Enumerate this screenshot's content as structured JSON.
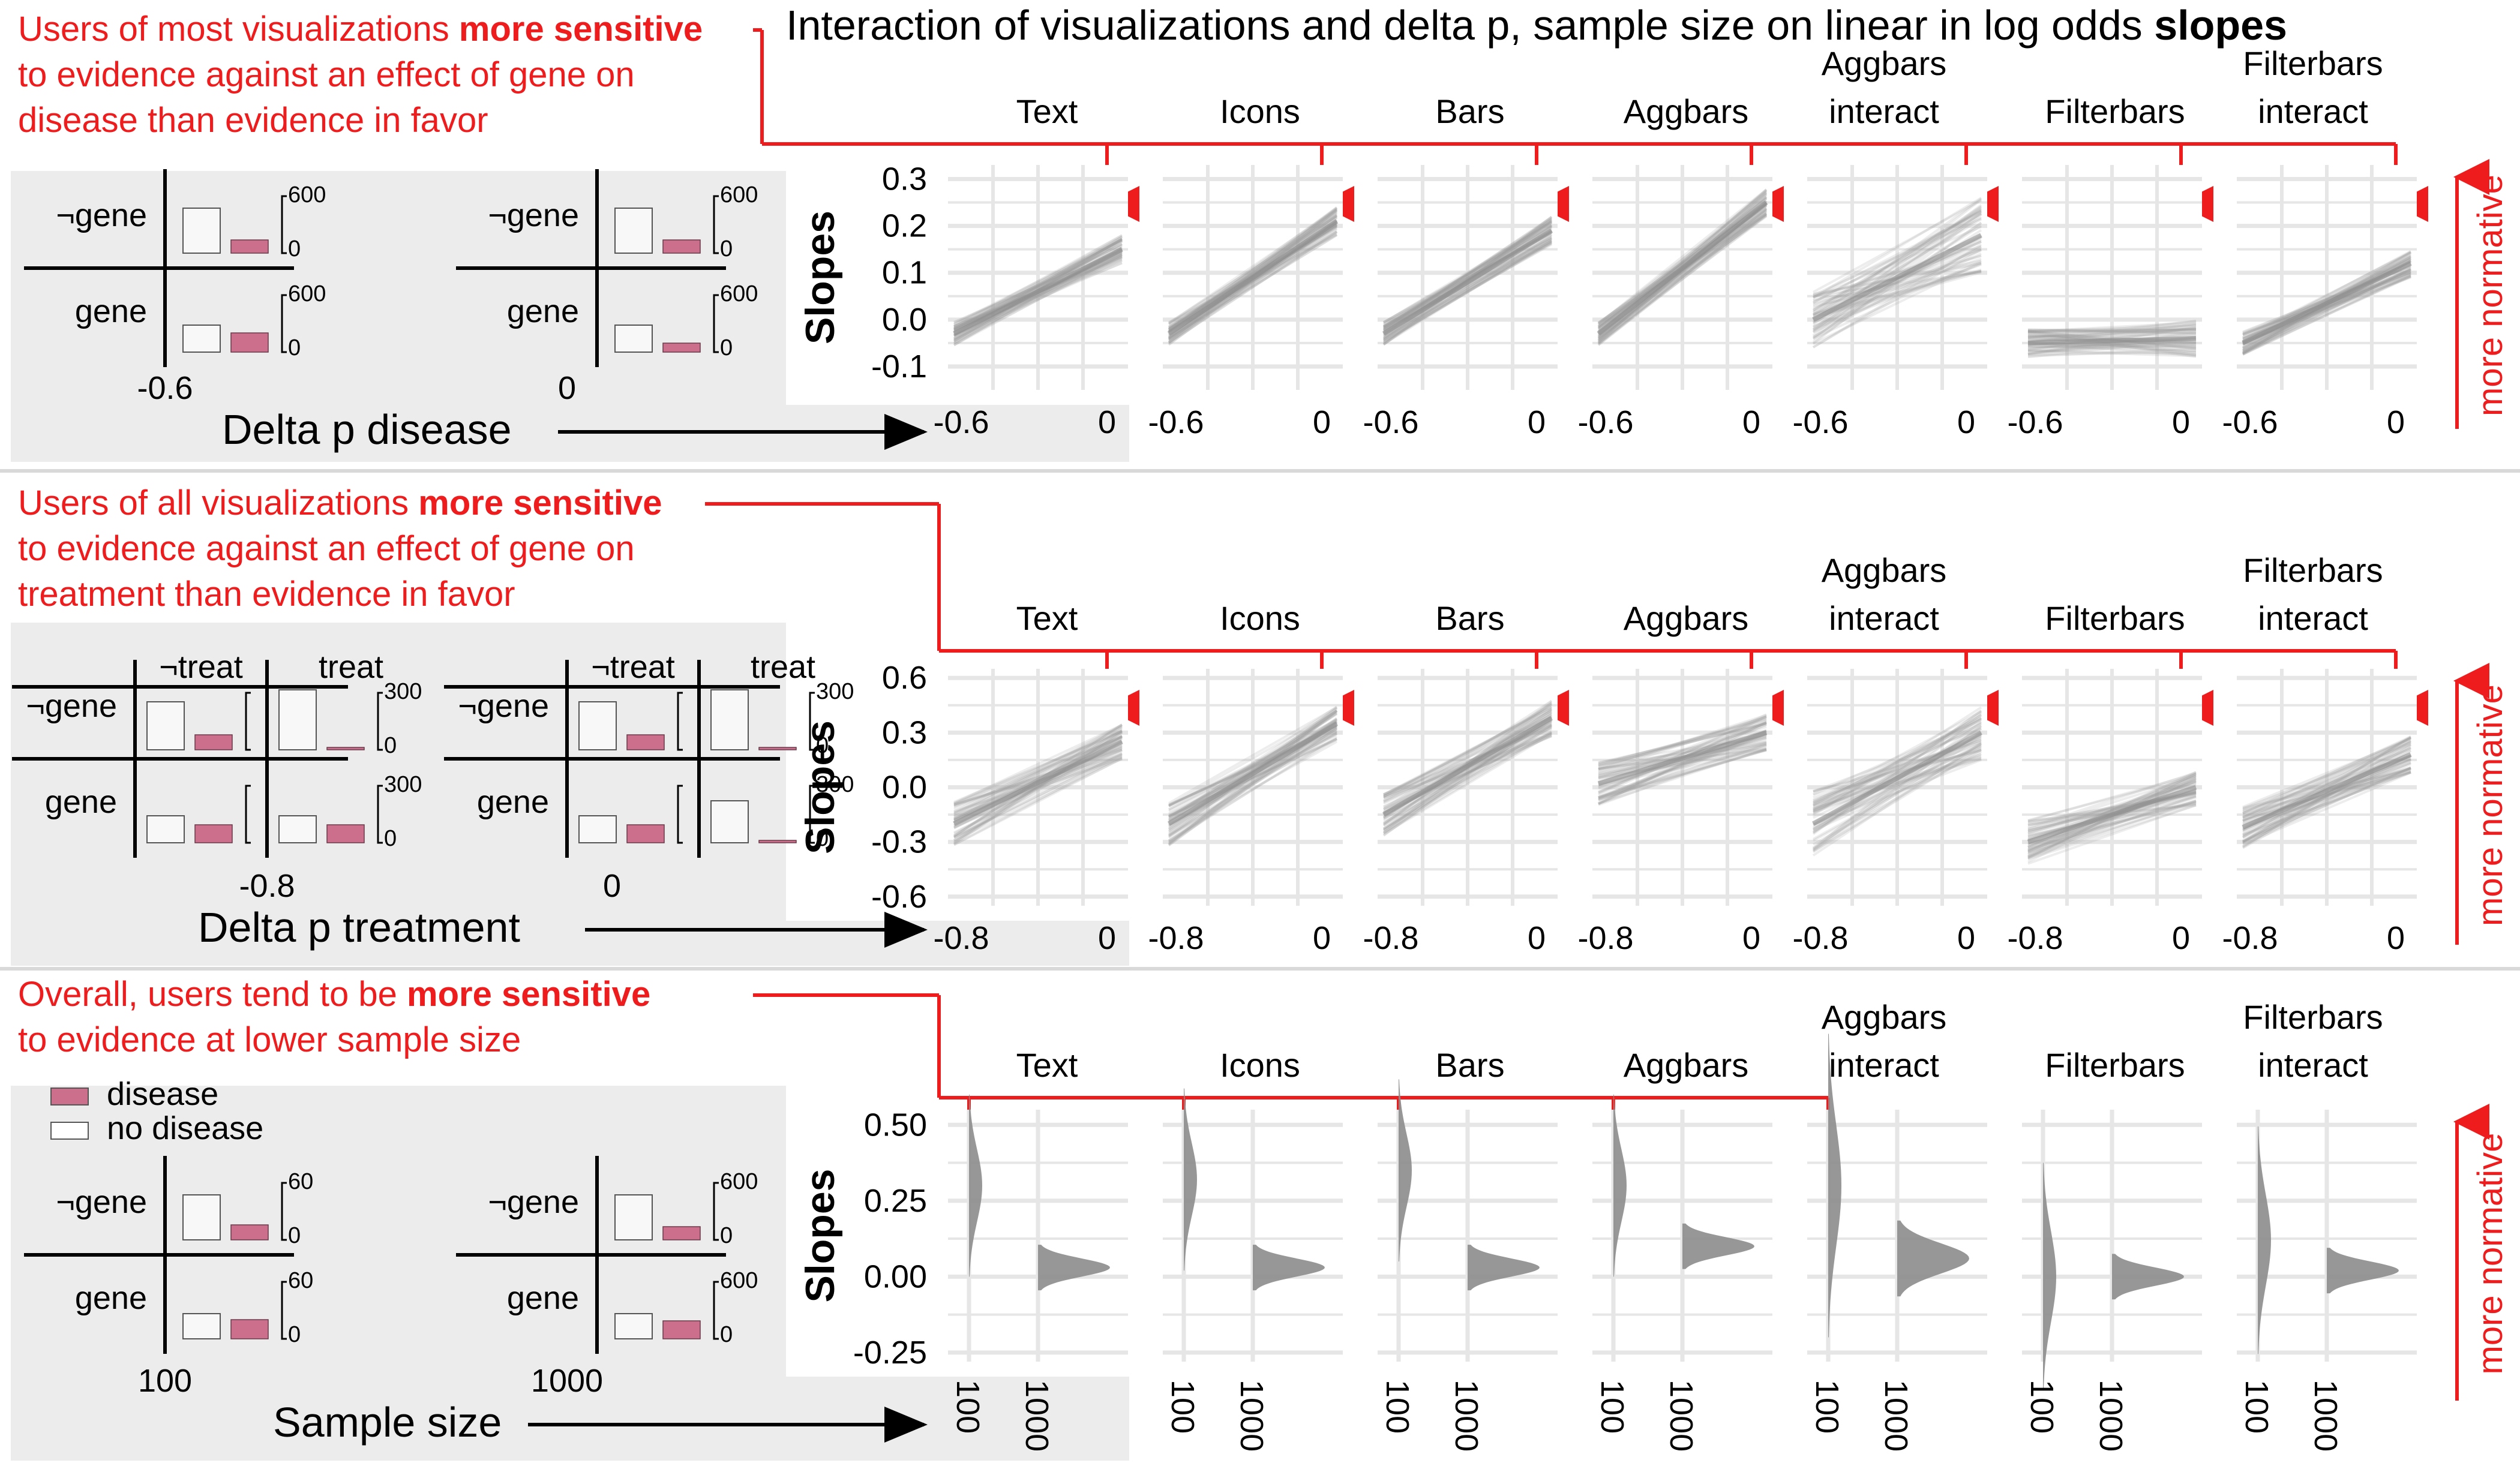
{
  "title": {
    "prefix": "Interaction of visualizations and delta p, sample size on linear in log odds ",
    "bold": "slopes"
  },
  "colors": {
    "red": "#ee1c1c",
    "line": "#999999",
    "grid": "#e6e6e6",
    "panel_bg": "#ececec",
    "bar_pink": "#cc6f8c"
  },
  "visualizations": [
    [
      "Text"
    ],
    [
      "Icons"
    ],
    [
      "Bars"
    ],
    [
      "Aggbars"
    ],
    [
      "Aggbars",
      "interact"
    ],
    [
      "Filterbars"
    ],
    [
      "Filterbars",
      "interact"
    ]
  ],
  "side_label": "more normative",
  "rows": [
    {
      "note_lines": [
        [
          {
            "t": "Users of most visualizations ",
            "b": false
          },
          {
            "t": "more sensitive",
            "b": true
          }
        ],
        [
          {
            "t": "to evidence against an effect of gene on",
            "b": false
          }
        ],
        [
          {
            "t": "disease than evidence in favor",
            "b": false
          }
        ]
      ],
      "matrix": {
        "type": "disease",
        "columns": [
          {
            "label": "-0.6",
            "rows": [
              "¬gene",
              "gene"
            ],
            "scale_top": "600",
            "scale_bottom": "0"
          },
          {
            "label": "0",
            "rows": [
              "¬gene",
              "gene"
            ],
            "scale_top": "600",
            "scale_bottom": "0"
          }
        ]
      },
      "bottom_label": "Delta p disease",
      "ylabel": "Slopes",
      "yticks": [
        "0.3",
        "0.2",
        "0.1",
        "0.0",
        "-0.1"
      ],
      "xticks": [
        "-0.6",
        "0"
      ]
    },
    {
      "note_lines": [
        [
          {
            "t": "Users of all visualizations ",
            "b": false
          },
          {
            "t": "more sensitive",
            "b": true
          }
        ],
        [
          {
            "t": "to evidence against an effect of gene on",
            "b": false
          }
        ],
        [
          {
            "t": "treatment than evidence in favor",
            "b": false
          }
        ]
      ],
      "matrix": {
        "type": "treatment",
        "col_headers": [
          "¬treat",
          "treat"
        ],
        "columns": [
          {
            "label": "-0.8",
            "rows": [
              "¬gene",
              "gene"
            ],
            "scale_top": "300",
            "scale_bottom": "0"
          },
          {
            "label": "0",
            "rows": [
              "¬gene",
              "gene"
            ],
            "scale_top": "300",
            "scale_bottom": "0"
          }
        ]
      },
      "bottom_label": "Delta p treatment",
      "ylabel": "Slopes",
      "yticks": [
        "0.6",
        "0.3",
        "0.0",
        "-0.3",
        "-0.6"
      ],
      "xticks": [
        "-0.8",
        "0"
      ]
    },
    {
      "note_lines": [
        [
          {
            "t": "Overall, users tend to be ",
            "b": false
          },
          {
            "t": "more sensitive",
            "b": true
          }
        ],
        [
          {
            "t": "to evidence at lower sample size",
            "b": false
          }
        ]
      ],
      "legend": [
        {
          "label": "disease",
          "color": "#cc6f8c"
        },
        {
          "label": "no disease",
          "color": "#ffffff"
        }
      ],
      "matrix": {
        "type": "sample",
        "columns": [
          {
            "label": "100",
            "rows": [
              "¬gene",
              "gene"
            ],
            "scale_top": "60",
            "scale_bottom": "0"
          },
          {
            "label": "1000",
            "rows": [
              "¬gene",
              "gene"
            ],
            "scale_top": "600",
            "scale_bottom": "0"
          }
        ]
      },
      "bottom_label": "Sample size",
      "ylabel": "Slopes",
      "yticks": [
        "0.50",
        "0.25",
        "0.00",
        "-0.25"
      ],
      "xticks": [
        "100",
        "1000"
      ]
    }
  ],
  "chart_data": [
    {
      "type": "line",
      "title": "Interaction of visualizations and delta p, sample size on linear in log odds slopes",
      "xlabel": "Delta p disease",
      "ylabel": "Slopes",
      "xlim": [
        -0.6,
        0
      ],
      "ylim": [
        -0.15,
        0.33
      ],
      "series": [
        {
          "name": "Text",
          "x": [
            -0.6,
            0
          ],
          "y": [
            -0.03,
            0.15
          ]
        },
        {
          "name": "Icons",
          "x": [
            -0.6,
            0
          ],
          "y": [
            -0.03,
            0.21
          ]
        },
        {
          "name": "Bars",
          "x": [
            -0.6,
            0
          ],
          "y": [
            -0.03,
            0.19
          ]
        },
        {
          "name": "Aggbars",
          "x": [
            -0.6,
            0
          ],
          "y": [
            -0.03,
            0.25
          ]
        },
        {
          "name": "Aggbars interact",
          "x": [
            -0.6,
            0
          ],
          "y": [
            0.0,
            0.18
          ]
        },
        {
          "name": "Filterbars",
          "x": [
            -0.6,
            0
          ],
          "y": [
            -0.05,
            -0.04
          ]
        },
        {
          "name": "Filterbars interact",
          "x": [
            -0.6,
            0
          ],
          "y": [
            -0.05,
            0.12
          ]
        }
      ]
    },
    {
      "type": "line",
      "xlabel": "Delta p treatment",
      "ylabel": "Slopes",
      "xlim": [
        -0.8,
        0
      ],
      "ylim": [
        -0.65,
        0.65
      ],
      "series": [
        {
          "name": "Text",
          "x": [
            -0.8,
            0
          ],
          "y": [
            -0.2,
            0.25
          ]
        },
        {
          "name": "Icons",
          "x": [
            -0.8,
            0
          ],
          "y": [
            -0.2,
            0.35
          ]
        },
        {
          "name": "Bars",
          "x": [
            -0.8,
            0
          ],
          "y": [
            -0.15,
            0.38
          ]
        },
        {
          "name": "Aggbars",
          "x": [
            -0.8,
            0
          ],
          "y": [
            0.02,
            0.3
          ]
        },
        {
          "name": "Aggbars interact",
          "x": [
            -0.8,
            0
          ],
          "y": [
            -0.2,
            0.3
          ]
        },
        {
          "name": "Filterbars",
          "x": [
            -0.8,
            0
          ],
          "y": [
            -0.3,
            0.0
          ]
        },
        {
          "name": "Filterbars interact",
          "x": [
            -0.8,
            0
          ],
          "y": [
            -0.22,
            0.18
          ]
        }
      ]
    },
    {
      "type": "area",
      "xlabel": "Sample size",
      "ylabel": "Slopes",
      "categories": [
        "100",
        "1000"
      ],
      "ylim": [
        -0.28,
        0.55
      ],
      "series": [
        {
          "name": "Text",
          "mode": [
            0.3,
            0.03
          ],
          "spread": [
            0.12,
            0.03
          ]
        },
        {
          "name": "Icons",
          "mode": [
            0.32,
            0.03
          ],
          "spread": [
            0.12,
            0.03
          ]
        },
        {
          "name": "Bars",
          "mode": [
            0.35,
            0.03
          ],
          "spread": [
            0.12,
            0.03
          ]
        },
        {
          "name": "Aggbars",
          "mode": [
            0.3,
            0.1
          ],
          "spread": [
            0.12,
            0.03
          ]
        },
        {
          "name": "Aggbars interact",
          "mode": [
            0.3,
            0.06
          ],
          "spread": [
            0.2,
            0.05
          ]
        },
        {
          "name": "Filterbars",
          "mode": [
            0.0,
            0.0
          ],
          "spread": [
            0.15,
            0.03
          ]
        },
        {
          "name": "Filterbars interact",
          "mode": [
            0.12,
            0.02
          ],
          "spread": [
            0.15,
            0.03
          ]
        }
      ]
    }
  ]
}
